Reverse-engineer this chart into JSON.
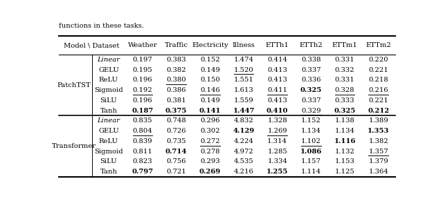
{
  "caption": "functions in these tasks.",
  "col_headers": [
    "Model \\ Dataset",
    "Weather",
    "Traffic",
    "Electricity",
    "Illness",
    "ETTh1",
    "ETTh2",
    "ETTm1",
    "ETTm2"
  ],
  "sections": [
    {
      "model": "PatchTST",
      "rows": [
        {
          "gate": "Linear",
          "italic": true,
          "values": [
            "0.197",
            "0.383",
            "0.152",
            "1.474",
            "0.414",
            "0.338",
            "0.331",
            "0.220"
          ],
          "bold": [
            false,
            false,
            false,
            false,
            false,
            false,
            false,
            false
          ],
          "underline": [
            false,
            false,
            false,
            false,
            false,
            false,
            false,
            false
          ]
        },
        {
          "gate": "GELU",
          "italic": false,
          "values": [
            "0.195",
            "0.382",
            "0.149",
            "1.520",
            "0.413",
            "0.337",
            "0.332",
            "0.221"
          ],
          "bold": [
            false,
            false,
            false,
            false,
            false,
            false,
            false,
            false
          ],
          "underline": [
            false,
            false,
            false,
            true,
            false,
            false,
            false,
            false
          ]
        },
        {
          "gate": "ReLU",
          "italic": false,
          "values": [
            "0.196",
            "0.380",
            "0.150",
            "1.551",
            "0.413",
            "0.336",
            "0.331",
            "0.218"
          ],
          "bold": [
            false,
            false,
            false,
            false,
            false,
            false,
            false,
            false
          ],
          "underline": [
            false,
            true,
            false,
            false,
            false,
            false,
            false,
            false
          ]
        },
        {
          "gate": "Sigmoid",
          "italic": false,
          "values": [
            "0.192",
            "0.386",
            "0.146",
            "1.613",
            "0.411",
            "0.325",
            "0.328",
            "0.216"
          ],
          "bold": [
            false,
            false,
            false,
            false,
            false,
            true,
            false,
            false
          ],
          "underline": [
            true,
            false,
            true,
            false,
            true,
            false,
            true,
            true
          ]
        },
        {
          "gate": "SiLU",
          "italic": false,
          "values": [
            "0.196",
            "0.381",
            "0.149",
            "1.559",
            "0.413",
            "0.337",
            "0.333",
            "0.221"
          ],
          "bold": [
            false,
            false,
            false,
            false,
            false,
            false,
            false,
            false
          ],
          "underline": [
            false,
            false,
            false,
            false,
            false,
            false,
            false,
            false
          ]
        },
        {
          "gate": "Tanh",
          "italic": false,
          "values": [
            "0.187",
            "0.375",
            "0.141",
            "1.447",
            "0.410",
            "0.329",
            "0.325",
            "0.212"
          ],
          "bold": [
            true,
            true,
            true,
            true,
            true,
            false,
            true,
            true
          ],
          "underline": [
            false,
            false,
            false,
            false,
            false,
            true,
            false,
            false
          ]
        }
      ]
    },
    {
      "model": "Transformer",
      "rows": [
        {
          "gate": "Linear",
          "italic": true,
          "values": [
            "0.835",
            "0.748",
            "0.296",
            "4.832",
            "1.328",
            "1.152",
            "1.138",
            "1.389"
          ],
          "bold": [
            false,
            false,
            false,
            false,
            false,
            false,
            false,
            false
          ],
          "underline": [
            false,
            false,
            false,
            false,
            false,
            false,
            false,
            false
          ]
        },
        {
          "gate": "GELU",
          "italic": false,
          "values": [
            "0.804",
            "0.726",
            "0.302",
            "4.129",
            "1.269",
            "1.134",
            "1.134",
            "1.353"
          ],
          "bold": [
            false,
            false,
            false,
            true,
            false,
            false,
            false,
            true
          ],
          "underline": [
            true,
            false,
            false,
            false,
            true,
            false,
            false,
            false
          ]
        },
        {
          "gate": "ReLU",
          "italic": false,
          "values": [
            "0.839",
            "0.735",
            "0.272",
            "4.224",
            "1.314",
            "1.102",
            "1.116",
            "1.382"
          ],
          "bold": [
            false,
            false,
            false,
            false,
            false,
            false,
            true,
            false
          ],
          "underline": [
            false,
            false,
            true,
            false,
            false,
            true,
            false,
            false
          ]
        },
        {
          "gate": "Sigmoid",
          "italic": false,
          "values": [
            "0.811",
            "0.714",
            "0.278",
            "4.972",
            "1.285",
            "1.086",
            "1.132",
            "1.357"
          ],
          "bold": [
            false,
            true,
            false,
            false,
            false,
            true,
            false,
            false
          ],
          "underline": [
            false,
            false,
            false,
            false,
            false,
            false,
            false,
            true
          ]
        },
        {
          "gate": "SiLU",
          "italic": false,
          "values": [
            "0.823",
            "0.756",
            "0.293",
            "4.535",
            "1.334",
            "1.157",
            "1.153",
            "1.379"
          ],
          "bold": [
            false,
            false,
            false,
            false,
            false,
            false,
            false,
            false
          ],
          "underline": [
            false,
            false,
            false,
            false,
            false,
            false,
            false,
            false
          ]
        },
        {
          "gate": "Tanh",
          "italic": false,
          "values": [
            "0.797",
            "0.721",
            "0.269",
            "4.216",
            "1.255",
            "1.114",
            "1.125",
            "1.364"
          ],
          "bold": [
            true,
            false,
            true,
            false,
            true,
            false,
            false,
            false
          ],
          "underline": [
            false,
            true,
            false,
            true,
            false,
            false,
            true,
            false
          ]
        }
      ]
    }
  ]
}
